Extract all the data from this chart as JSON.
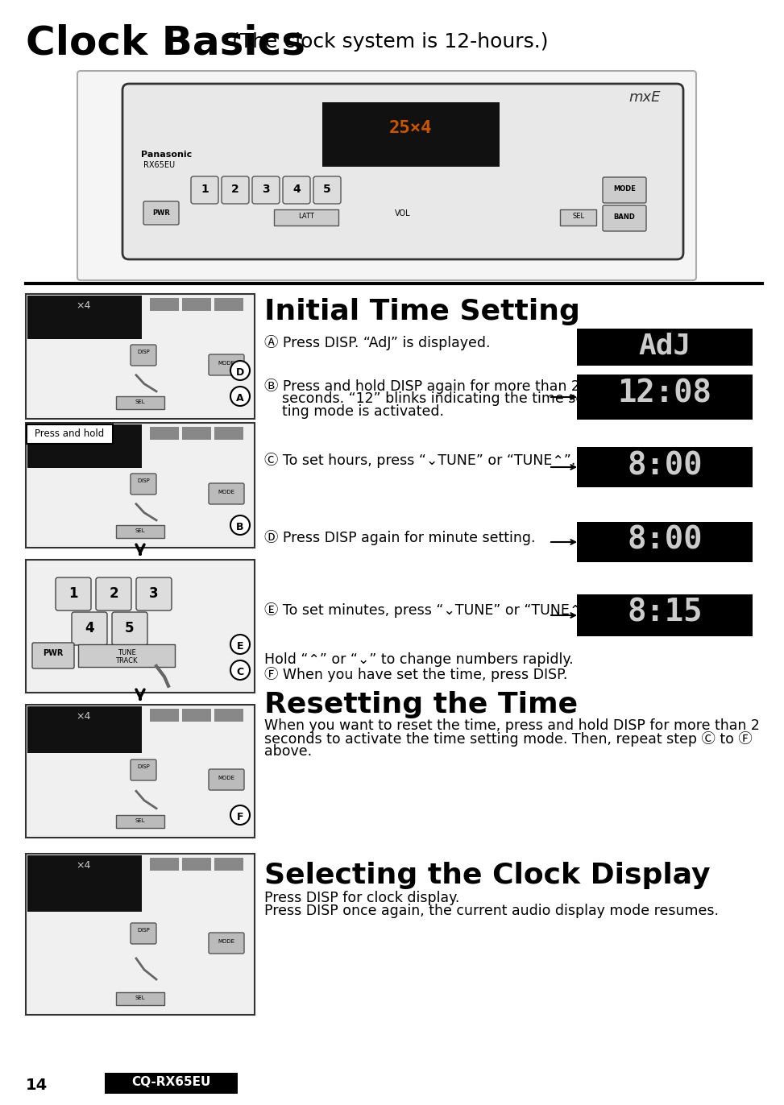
{
  "page_bg": "#ffffff",
  "title_bold": "Clock Basics",
  "title_normal": " (The clock system is 12-hours.)",
  "separator_color": "#000000",
  "section1_title": "Initial Time Setting",
  "step_A": "Ⓐ Press DISP. “AdJ” is displayed.",
  "step_B_line1": "Ⓑ Press and hold DISP again for more than 2",
  "step_B_line2": "    seconds. “12” blinks indicating the time set-",
  "step_B_line3": "    ting mode is activated.",
  "step_C": "Ⓒ To set hours, press “⌄TUNE” or “TUNE⌃”.",
  "step_D": "Ⓓ Press DISP again for minute setting.",
  "step_E": "Ⓔ To set minutes, press “⌄TUNE” or “TUNE⌃”.",
  "hold_note1": "Hold “⌃” or “⌄” to change numbers rapidly.",
  "hold_note2": "Ⓕ When you have set the time, press DISP.",
  "section2_title": "Resetting the Time",
  "section2_line1": "When you want to reset the time, press and hold DISP for more than 2",
  "section2_line2": "seconds to activate the time setting mode. Then, repeat step Ⓒ to Ⓕ",
  "section2_line3": "above.",
  "section3_title": "Selecting the Clock Display",
  "section3_line1": "Press DISP for clock display.",
  "section3_line2": "Press DISP once again, the current audio display mode resumes.",
  "page_number": "14",
  "model_label": "CQ-RX65EU",
  "display_color_bg": "#000000",
  "display_color_fg": "#ffffff",
  "display_items": [
    {
      "text": "AdJ",
      "has_arrows": false
    },
    {
      "text": "12:08",
      "has_arrows": true
    },
    {
      "text": "8:00",
      "has_arrows": true
    },
    {
      "text": "8:00",
      "has_arrows": true
    },
    {
      "text": "8:15",
      "has_arrows": true
    }
  ],
  "press_hold_text": "Press and hold"
}
